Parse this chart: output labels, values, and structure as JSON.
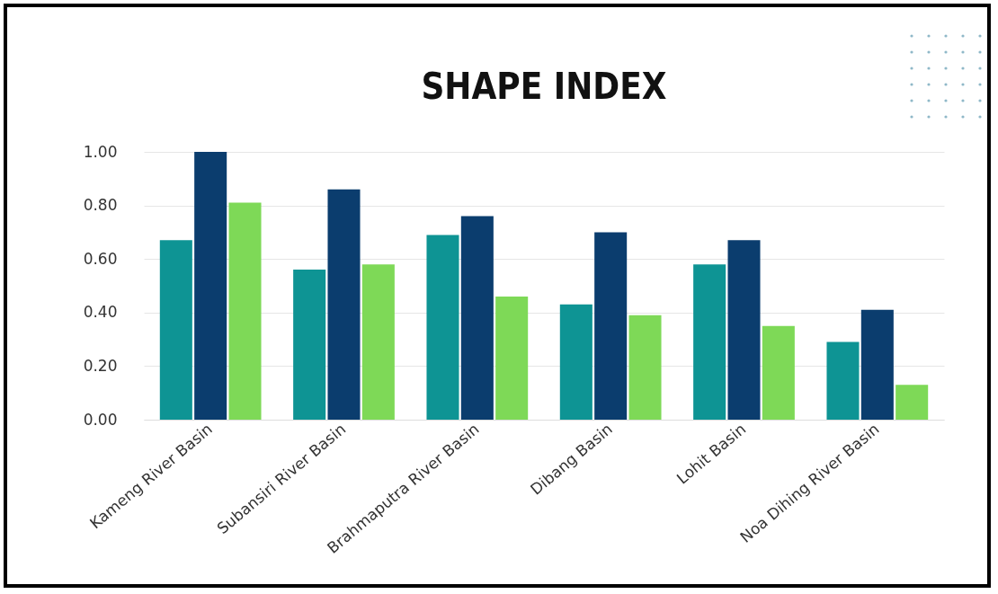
{
  "chart_data": {
    "type": "bar",
    "title": "SHAPE INDEX",
    "categories": [
      "Kameng River Basin",
      "Subansiri River Basin",
      "Brahmaputra River Basin",
      "Dibang Basin",
      "Lohit Basin",
      "Noa Dihing River Basin"
    ],
    "series": [
      {
        "color": "#0e9494",
        "values": [
          0.67,
          0.56,
          0.69,
          0.43,
          0.58,
          0.29
        ]
      },
      {
        "color": "#0b3d6e",
        "values": [
          1.0,
          0.86,
          0.76,
          0.7,
          0.67,
          0.41
        ]
      },
      {
        "color": "#7ed957",
        "values": [
          0.81,
          0.58,
          0.46,
          0.39,
          0.35,
          0.13
        ]
      }
    ],
    "ylim": [
      0,
      1
    ],
    "yticks": [
      {
        "value": 0,
        "label": "0.00"
      },
      {
        "value": 0.2,
        "label": "0.20"
      },
      {
        "value": 0.4,
        "label": "0.40"
      },
      {
        "value": 0.6,
        "label": "0.60"
      },
      {
        "value": 0.8,
        "label": "0.80"
      },
      {
        "value": 1,
        "label": "1.00"
      }
    ],
    "grid": "y",
    "legend": false
  }
}
